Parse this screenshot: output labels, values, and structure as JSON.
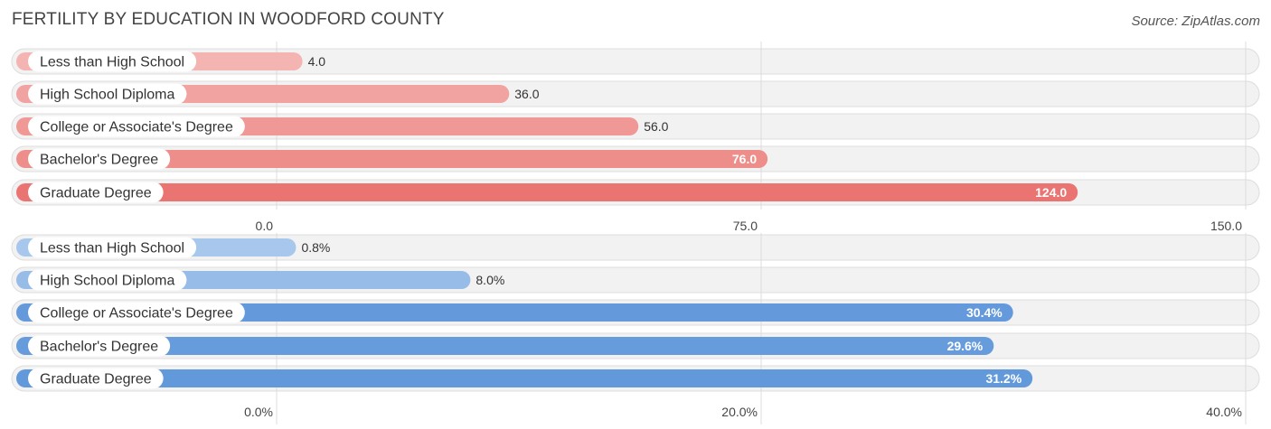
{
  "title": "FERTILITY BY EDUCATION IN WOODFORD COUNTY",
  "source": "Source: ZipAtlas.com",
  "chart_data": [
    {
      "type": "bar",
      "orientation": "horizontal",
      "categories": [
        "Less than High School",
        "High School Diploma",
        "College or Associate's Degree",
        "Bachelor's Degree",
        "Graduate Degree"
      ],
      "values": [
        4.0,
        36.0,
        56.0,
        76.0,
        124.0
      ],
      "value_labels": [
        "4.0",
        "36.0",
        "56.0",
        "76.0",
        "124.0"
      ],
      "xlim": [
        0,
        150
      ],
      "ticks": [
        0,
        75,
        150
      ],
      "tick_labels": [
        "0.0",
        "75.0",
        "150.0"
      ],
      "color_light": "#f4b6b4",
      "color_dark": "#e97471",
      "grid": true
    },
    {
      "type": "bar",
      "orientation": "horizontal",
      "categories": [
        "Less than High School",
        "High School Diploma",
        "College or Associate's Degree",
        "Bachelor's Degree",
        "Graduate Degree"
      ],
      "values": [
        0.8,
        8.0,
        30.4,
        29.6,
        31.2
      ],
      "value_labels": [
        "0.8%",
        "8.0%",
        "30.4%",
        "29.6%",
        "31.2%"
      ],
      "xlim": [
        0,
        40
      ],
      "ticks": [
        0,
        20,
        40
      ],
      "tick_labels": [
        "0.0%",
        "20.0%",
        "40.0%"
      ],
      "color_light": "#a9c8ec",
      "color_dark": "#6299db",
      "grid": true
    }
  ]
}
